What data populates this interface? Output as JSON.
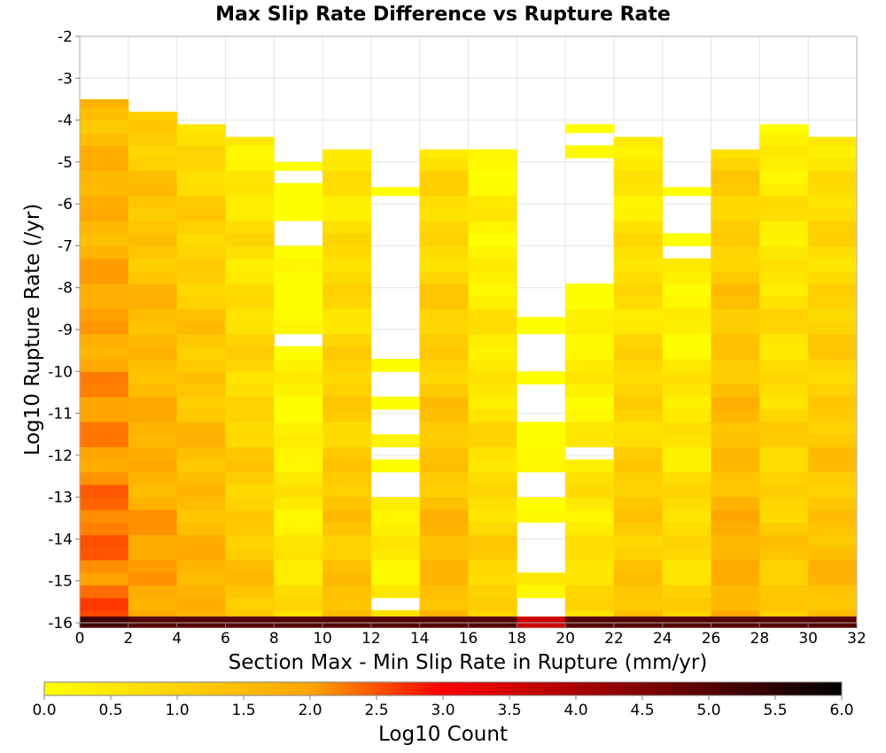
{
  "chart_data": {
    "type": "heatmap",
    "title": "Max Slip Rate Difference vs Rupture Rate",
    "xlabel": "Section Max - Min Slip Rate in Rupture (mm/yr)",
    "ylabel": "Log10 Rupture Rate (/yr)",
    "xlim": [
      0,
      32
    ],
    "ylim": [
      -16,
      -2
    ],
    "x_ticks": [
      "0",
      "2",
      "4",
      "6",
      "8",
      "10",
      "12",
      "14",
      "16",
      "18",
      "20",
      "22",
      "24",
      "26",
      "28",
      "30",
      "32"
    ],
    "y_ticks": [
      "-2",
      "-3",
      "-4",
      "-5",
      "-6",
      "-7",
      "-8",
      "-9",
      "-10",
      "-11",
      "-12",
      "-13",
      "-14",
      "-15",
      "-16"
    ],
    "colorbar": {
      "label": "Log10 Count",
      "range": [
        0,
        6
      ],
      "ticks": [
        "0.0",
        "0.5",
        "1.0",
        "1.5",
        "2.0",
        "2.5",
        "3.0",
        "3.5",
        "4.0",
        "4.5",
        "5.0",
        "5.5",
        "6.0"
      ],
      "colors": [
        "#ffff00",
        "#ffa500",
        "#ff0000",
        "#000000"
      ]
    },
    "grid": true,
    "bin_width": 2,
    "bin_height": 0.3,
    "columns": [
      {
        "x": [
          0,
          2
        ],
        "top": -3.5,
        "bottom": -16,
        "value": 2.3
      },
      {
        "x": [
          2,
          4
        ],
        "top": -3.8,
        "bottom": -16,
        "value": 1.9
      },
      {
        "x": [
          4,
          6
        ],
        "top": -4.1,
        "bottom": -16,
        "value": 1.6
      },
      {
        "x": [
          6,
          8
        ],
        "top": -4.4,
        "bottom": -16,
        "value": 1.2
      },
      {
        "x": [
          8,
          10
        ],
        "top": -5.0,
        "bottom": -16,
        "value": 0.5,
        "gaps": [
          [
            -5.6,
            -5.3
          ],
          [
            -7.0,
            -6.4
          ],
          [
            -8.0,
            -7.8
          ],
          [
            -9.3,
            -9.0
          ]
        ]
      },
      {
        "x": [
          10,
          12
        ],
        "top": -4.7,
        "bottom": -16,
        "value": 1.3
      },
      {
        "x": [
          12,
          14
        ],
        "top": -5.6,
        "bottom": -16,
        "value": 0.4,
        "gaps": [
          [
            -9.6,
            -5.9
          ],
          [
            -10.7,
            -10.0
          ],
          [
            -11.6,
            -11.0
          ],
          [
            -12.0,
            -11.9
          ],
          [
            -13.0,
            -12.3
          ],
          [
            -15.6,
            -15.4
          ]
        ]
      },
      {
        "x": [
          14,
          16
        ],
        "top": -4.7,
        "bottom": -16,
        "value": 1.5
      },
      {
        "x": [
          16,
          18
        ],
        "top": -4.7,
        "bottom": -16,
        "value": 0.9
      },
      {
        "x": [
          18,
          20
        ],
        "top": -8.7,
        "bottom": -16,
        "value": 0.2,
        "gaps": [
          [
            -9.9,
            -9.0
          ],
          [
            -11.3,
            -10.4
          ],
          [
            -13.0,
            -12.4
          ],
          [
            -14.7,
            -13.6
          ],
          [
            -15.9,
            -15.3
          ]
        ]
      },
      {
        "x": [
          20,
          22
        ],
        "top": -4.1,
        "bottom": -16,
        "value": 0.6,
        "gaps": [
          [
            -4.7,
            -4.4
          ],
          [
            -7.8,
            -5.0
          ],
          [
            -12.1,
            -11.9
          ]
        ]
      },
      {
        "x": [
          22,
          24
        ],
        "top": -4.4,
        "bottom": -16,
        "value": 1.2
      },
      {
        "x": [
          24,
          26
        ],
        "top": -5.6,
        "bottom": -16,
        "value": 0.8,
        "gaps": [
          [
            -6.7,
            -5.9
          ],
          [
            -7.3,
            -7.0
          ]
        ]
      },
      {
        "x": [
          26,
          28
        ],
        "top": -4.7,
        "bottom": -16,
        "value": 1.7
      },
      {
        "x": [
          28,
          30
        ],
        "top": -4.1,
        "bottom": -16,
        "value": 1.1
      },
      {
        "x": [
          30,
          32
        ],
        "top": -4.4,
        "bottom": -16,
        "value": 1.4
      }
    ],
    "bottom_row": {
      "y": -16,
      "values": [
        5.2,
        5.0,
        5.0,
        5.0,
        5.0,
        5.0,
        5.0,
        5.0,
        5.0,
        3.6,
        5.0,
        5.0,
        5.0,
        5.0,
        5.0,
        5.0
      ]
    }
  }
}
